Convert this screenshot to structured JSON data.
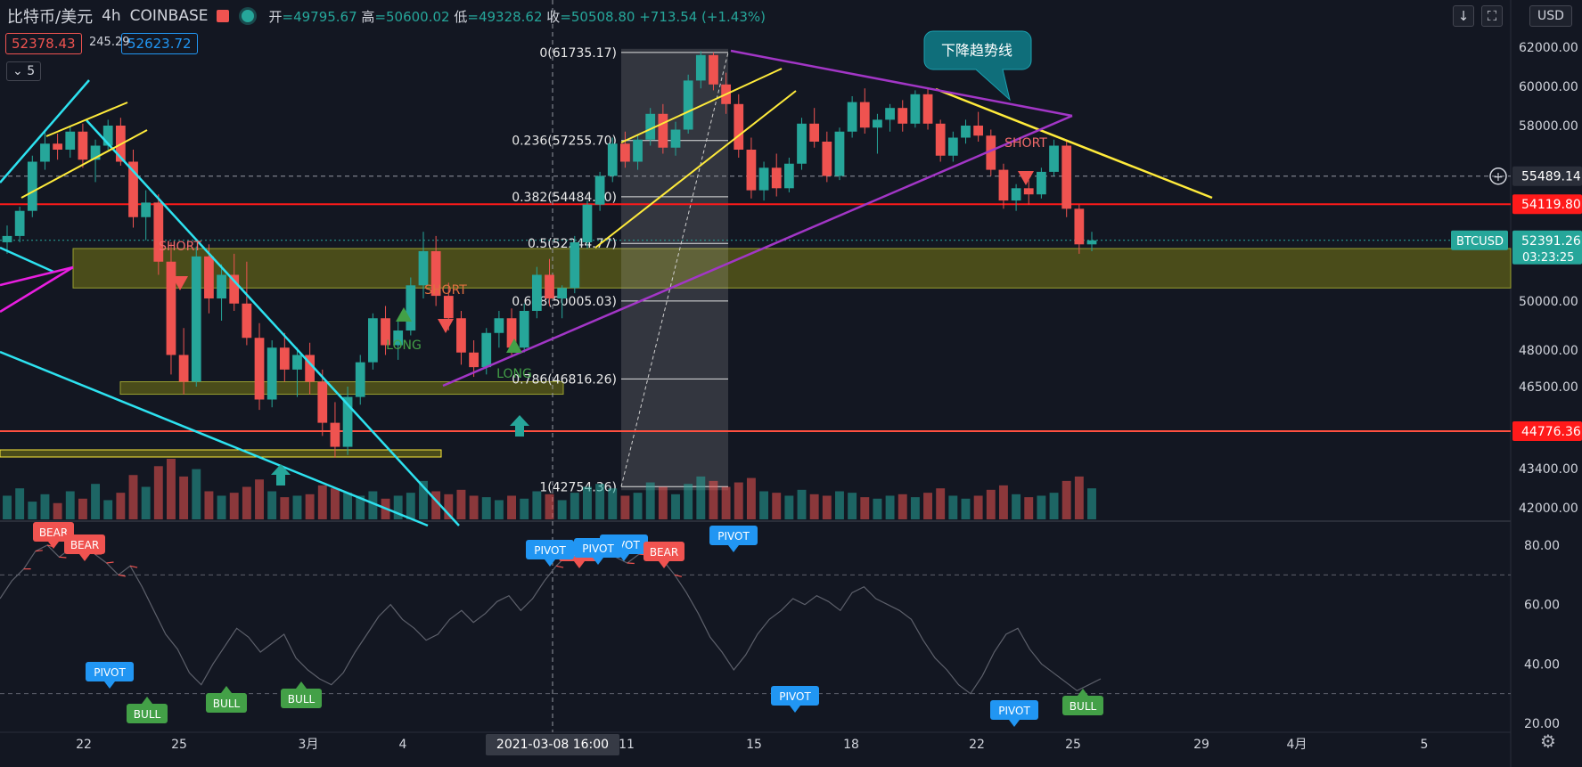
{
  "header": {
    "symbol": "比特币/美元",
    "interval": "4h",
    "exchange": "COINBASE",
    "open_label": "开",
    "open": "=49795.67",
    "high_label": "高",
    "high": "=50600.02",
    "low_label": "低",
    "low": "=49328.62",
    "close_label": "收",
    "close": "=50508.80",
    "change": "+713.54 (+1.43%)"
  },
  "price_boxes": {
    "bid": "52378.43",
    "spread": "245.29",
    "ask": "52623.72",
    "indicator_count": "5"
  },
  "top_right": {
    "currency": "USD",
    "down_arrow_icon": "↓",
    "fullscreen_icon": "⛶"
  },
  "colors": {
    "background": "#131722",
    "up": "#26a69a",
    "down": "#ef5350",
    "red_line": "#ff1a1a",
    "yellow": "#ffeb3b",
    "cyan": "#2de2f0",
    "magenta": "#e91ee0",
    "purple": "#a236c6",
    "zone": "#5a5820",
    "bear": "#f05350",
    "bull": "#43a047",
    "pivot": "#2196f3"
  },
  "chart_data": {
    "type": "candlestick",
    "symbol": "BTCUSD",
    "y_axis": {
      "ticks": [
        {
          "value": 62000,
          "label": "62000.00"
        },
        {
          "value": 60000,
          "label": "60000.00"
        },
        {
          "value": 58000,
          "label": "58000.00"
        },
        {
          "value": 50000,
          "label": "50000.00"
        },
        {
          "value": 48000,
          "label": "48000.00"
        },
        {
          "value": 46500,
          "label": "46500.00"
        },
        {
          "value": 43400,
          "label": "43400.00"
        },
        {
          "value": 42000,
          "label": "42000.00"
        }
      ],
      "price_labels": [
        {
          "value": 55489.14,
          "label": "55489.14",
          "style": "dark"
        },
        {
          "value": 54119.8,
          "label": "54119.80",
          "style": "red"
        },
        {
          "value": 52391.26,
          "label": "52391.26",
          "style": "green",
          "sub": "03:23:25",
          "tag": "BTCUSD"
        },
        {
          "value": 44776.36,
          "label": "44776.36",
          "style": "red"
        }
      ]
    },
    "x_axis": {
      "ticks": [
        "22",
        "25",
        "3月",
        "4",
        "11",
        "15",
        "18",
        "22",
        "25",
        "29",
        "4月",
        "5"
      ],
      "crosshair_label": "2021-03-08   16:00"
    },
    "fibonacci": [
      {
        "level": "0(61735.17)",
        "value": 61735.17
      },
      {
        "level": "0.236(57255.70)",
        "value": 57255.7
      },
      {
        "level": "0.382(54484.50)",
        "value": 54484.5
      },
      {
        "level": "0.5(52244.77)",
        "value": 52244.77
      },
      {
        "level": "0.618(50005.03)",
        "value": 50005.03
      },
      {
        "level": "0.786(46816.26)",
        "value": 46816.26
      },
      {
        "level": "1(42754.36)",
        "value": 42754.36
      }
    ],
    "horizontal_lines": [
      {
        "value": 54119.8,
        "color": "red"
      },
      {
        "value": 44776.36,
        "color": "red"
      }
    ],
    "zones": [
      {
        "from": 50500,
        "to": 52000,
        "color": "olive"
      },
      {
        "from": 46400,
        "to": 46700,
        "color": "olive"
      }
    ],
    "annotations": {
      "callout": "下降趋势线",
      "signals": [
        {
          "text": "SHORT",
          "kind": "short"
        },
        {
          "text": "SHORT",
          "kind": "short"
        },
        {
          "text": "LONG",
          "kind": "long"
        },
        {
          "text": "LONG",
          "kind": "long"
        },
        {
          "text": "SHORT",
          "kind": "short"
        }
      ]
    },
    "candles": [
      [
        52300,
        53100,
        51800,
        52600
      ],
      [
        52600,
        54000,
        52300,
        53800
      ],
      [
        53800,
        56500,
        53500,
        56200
      ],
      [
        56200,
        57800,
        55800,
        57100
      ],
      [
        57100,
        57600,
        56300,
        56800
      ],
      [
        56800,
        58000,
        56400,
        57700
      ],
      [
        57700,
        58100,
        55900,
        56300
      ],
      [
        56300,
        57300,
        55200,
        57000
      ],
      [
        57000,
        58300,
        56800,
        58000
      ],
      [
        58000,
        58400,
        56000,
        56200
      ],
      [
        56200,
        56800,
        53000,
        53500
      ],
      [
        53500,
        54800,
        52400,
        54200
      ],
      [
        54200,
        54600,
        51000,
        51500
      ],
      [
        51500,
        52300,
        47000,
        47800
      ],
      [
        47800,
        48900,
        46200,
        46700
      ],
      [
        46700,
        52100,
        46500,
        51700
      ],
      [
        51700,
        52200,
        49500,
        50100
      ],
      [
        50100,
        51400,
        49200,
        51000
      ],
      [
        51000,
        51800,
        49600,
        49900
      ],
      [
        49900,
        51500,
        48200,
        48500
      ],
      [
        48500,
        49100,
        45600,
        46000
      ],
      [
        46000,
        48400,
        45700,
        48100
      ],
      [
        48100,
        48700,
        46700,
        47200
      ],
      [
        47200,
        48100,
        46100,
        47800
      ],
      [
        47800,
        48300,
        46200,
        46700
      ],
      [
        46700,
        47200,
        44600,
        45100
      ],
      [
        45100,
        45900,
        43800,
        44200
      ],
      [
        44200,
        46500,
        43900,
        46100
      ],
      [
        46100,
        47800,
        45800,
        47500
      ],
      [
        47500,
        49500,
        47200,
        49300
      ],
      [
        49300,
        49800,
        47800,
        48200
      ],
      [
        48200,
        49200,
        47600,
        48800
      ],
      [
        48800,
        50900,
        48600,
        50600
      ],
      [
        50600,
        52800,
        50100,
        51900
      ],
      [
        51900,
        52600,
        49800,
        50200
      ],
      [
        50200,
        50700,
        48800,
        49300
      ],
      [
        49300,
        49600,
        47400,
        47900
      ],
      [
        47900,
        48400,
        46900,
        47300
      ],
      [
        47300,
        48900,
        47000,
        48700
      ],
      [
        48700,
        49600,
        48100,
        49300
      ],
      [
        49300,
        49700,
        47800,
        48100
      ],
      [
        48100,
        49900,
        47900,
        49600
      ],
      [
        49600,
        51300,
        49300,
        51000
      ],
      [
        51000,
        51600,
        49800,
        50100
      ],
      [
        50100,
        50600,
        49300,
        50500
      ],
      [
        50500,
        52600,
        50300,
        52300
      ],
      [
        52300,
        54300,
        52000,
        54100
      ],
      [
        54100,
        55700,
        53800,
        55500
      ],
      [
        55500,
        57400,
        55200,
        57100
      ],
      [
        57100,
        57700,
        55900,
        56200
      ],
      [
        56200,
        57500,
        55800,
        57300
      ],
      [
        57300,
        58900,
        57000,
        58600
      ],
      [
        58600,
        59100,
        56600,
        56900
      ],
      [
        56900,
        58200,
        56500,
        57800
      ],
      [
        57800,
        60600,
        57600,
        60300
      ],
      [
        60300,
        61800,
        59900,
        61600
      ],
      [
        61600,
        61735,
        59800,
        60100
      ],
      [
        60100,
        60700,
        58600,
        59100
      ],
      [
        59100,
        59600,
        56400,
        56800
      ],
      [
        56800,
        57400,
        54400,
        54800
      ],
      [
        54800,
        56200,
        54300,
        55900
      ],
      [
        55900,
        56600,
        54500,
        54900
      ],
      [
        54900,
        56400,
        54700,
        56100
      ],
      [
        56100,
        58400,
        55800,
        58100
      ],
      [
        58100,
        58900,
        56900,
        57200
      ],
      [
        57200,
        57700,
        55200,
        55500
      ],
      [
        55500,
        57900,
        55300,
        57700
      ],
      [
        57700,
        59500,
        57400,
        59200
      ],
      [
        59200,
        59900,
        57600,
        57900
      ],
      [
        57900,
        58600,
        56600,
        58300
      ],
      [
        58300,
        59100,
        57700,
        58900
      ],
      [
        58900,
        59300,
        57700,
        58100
      ],
      [
        58100,
        59800,
        57900,
        59600
      ],
      [
        59600,
        59900,
        57800,
        58100
      ],
      [
        58100,
        58300,
        56200,
        56500
      ],
      [
        56500,
        57700,
        56200,
        57400
      ],
      [
        57400,
        58300,
        57100,
        58000
      ],
      [
        58000,
        58700,
        57200,
        57500
      ],
      [
        57500,
        57800,
        55500,
        55800
      ],
      [
        55800,
        56100,
        53900,
        54300
      ],
      [
        54300,
        55100,
        53800,
        54900
      ],
      [
        54900,
        55300,
        54100,
        54600
      ],
      [
        54600,
        55900,
        54400,
        55700
      ],
      [
        55700,
        57300,
        55500,
        57000
      ],
      [
        57000,
        57300,
        53500,
        53900
      ],
      [
        53900,
        54100,
        51800,
        52200
      ],
      [
        52200,
        52800,
        51900,
        52391
      ]
    ],
    "volume": [
      1.6,
      2.1,
      1.2,
      1.7,
      1.1,
      1.9,
      1.4,
      2.4,
      1.3,
      1.8,
      3.0,
      2.2,
      3.6,
      4.1,
      2.9,
      3.4,
      1.9,
      1.6,
      1.8,
      2.2,
      2.7,
      1.9,
      1.5,
      1.6,
      1.7,
      2.3,
      2.1,
      1.8,
      1.6,
      1.9,
      1.4,
      1.6,
      1.8,
      2.6,
      1.9,
      1.7,
      2.0,
      1.6,
      1.5,
      1.3,
      1.6,
      1.4,
      1.9,
      1.7,
      1.3,
      1.8,
      2.2,
      2.4,
      2.1,
      1.6,
      1.8,
      2.5,
      2.2,
      1.7,
      2.4,
      2.9,
      2.6,
      2.2,
      2.5,
      2.8,
      1.9,
      1.8,
      1.6,
      2.0,
      1.7,
      1.6,
      1.9,
      1.8,
      1.5,
      1.4,
      1.6,
      1.7,
      1.5,
      1.8,
      2.1,
      1.6,
      1.4,
      1.6,
      2.0,
      2.3,
      1.7,
      1.5,
      1.6,
      1.8,
      2.6,
      2.9,
      2.1
    ],
    "oscillator": {
      "ticks": [
        {
          "value": 80,
          "label": "80.00"
        },
        {
          "value": 60,
          "label": "60.00"
        },
        {
          "value": 40,
          "label": "40.00"
        },
        {
          "value": 20,
          "label": "20.00"
        }
      ],
      "bands": [
        70,
        30
      ],
      "values": [
        62,
        68,
        72,
        78,
        80,
        76,
        79,
        82,
        77,
        74,
        70,
        73,
        66,
        58,
        50,
        45,
        37,
        33,
        40,
        46,
        52,
        49,
        44,
        47,
        50,
        42,
        38,
        35,
        33,
        37,
        44,
        50,
        56,
        60,
        55,
        52,
        48,
        50,
        55,
        58,
        54,
        57,
        61,
        63,
        58,
        62,
        68,
        73,
        77,
        75,
        78,
        80,
        76,
        74,
        77,
        79,
        75,
        70,
        64,
        57,
        49,
        44,
        38,
        43,
        50,
        55,
        58,
        62,
        60,
        63,
        61,
        58,
        64,
        66,
        62,
        60,
        58,
        55,
        48,
        42,
        38,
        33,
        30,
        36,
        44,
        50,
        52,
        45,
        40,
        37,
        34,
        31,
        33,
        35
      ],
      "signals": [
        {
          "text": "BEAR",
          "kind": "bear"
        },
        {
          "text": "BEAR",
          "kind": "bear"
        },
        {
          "text": "PIVOT",
          "kind": "pivot"
        },
        {
          "text": "BULL",
          "kind": "bull"
        },
        {
          "text": "BULL",
          "kind": "bull"
        },
        {
          "text": "BULL",
          "kind": "bull"
        },
        {
          "text": "PIVOT",
          "kind": "pivot"
        },
        {
          "text": "PIVOT",
          "kind": "pivot"
        },
        {
          "text": "BEAR",
          "kind": "bear"
        },
        {
          "text": "PIVOT",
          "kind": "pivot"
        },
        {
          "text": "BEAR",
          "kind": "bear"
        },
        {
          "text": "PIVOT",
          "kind": "pivot"
        },
        {
          "text": "PIVOT",
          "kind": "pivot"
        },
        {
          "text": "PIVOT",
          "kind": "pivot"
        },
        {
          "text": "BULL",
          "kind": "bull"
        }
      ]
    }
  }
}
